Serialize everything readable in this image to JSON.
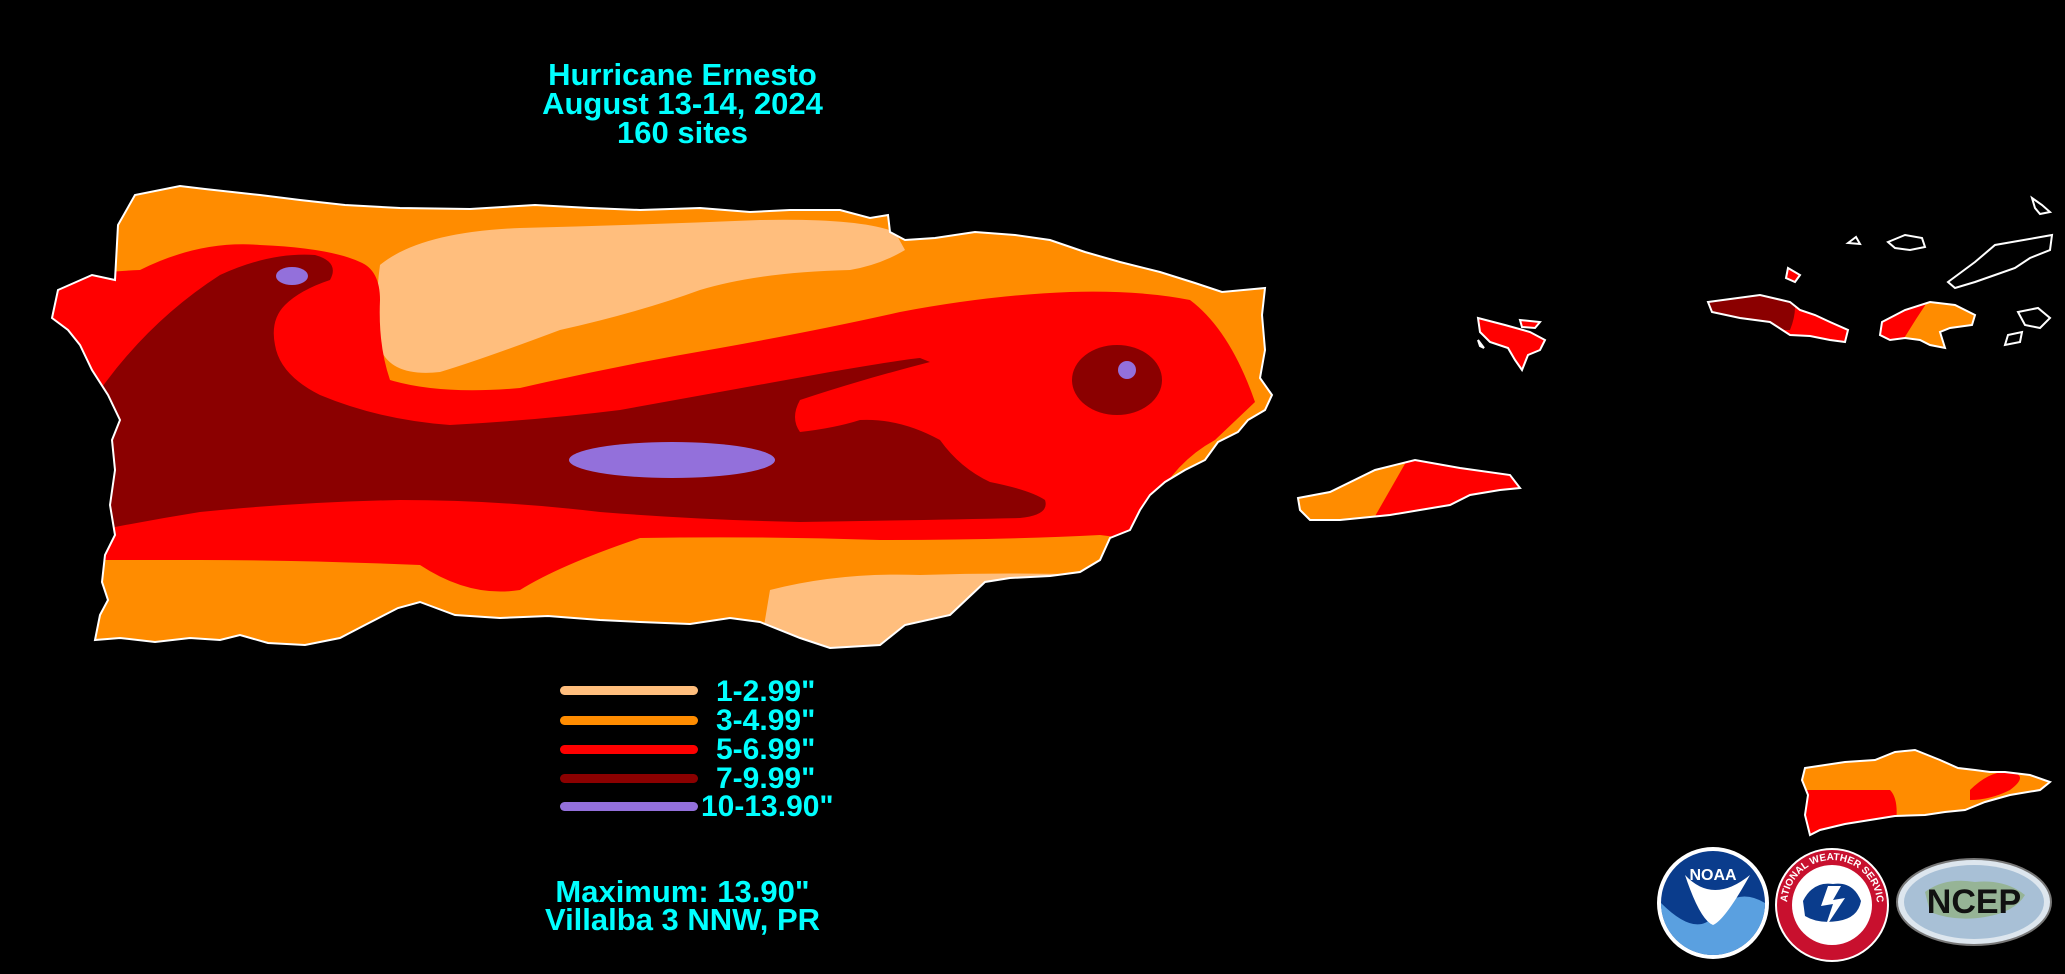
{
  "title": {
    "storm": "Hurricane Ernesto",
    "dates": "August 13-14, 2024",
    "sites": "160 sites"
  },
  "legend": [
    {
      "label": "1-2.99\"",
      "color": "#FFBE7D"
    },
    {
      "label": "3-4.99\"",
      "color": "#FF8C00"
    },
    {
      "label": "5-6.99\"",
      "color": "#FF0000"
    },
    {
      "label": "7-9.99\"",
      "color": "#8B0000"
    },
    {
      "label": "10-13.90\"",
      "color": "#9370DB"
    }
  ],
  "maximum": {
    "value": "Maximum: 13.90\"",
    "location": "Villalba 3 NNW, PR"
  },
  "logos": {
    "noaa": "NOAA",
    "nws": "NATIONAL WEATHER SERVICE",
    "ncep": "NCEP"
  },
  "colors": {
    "background": "#000000",
    "text": "#00FFFF",
    "coast": "#FFFFFF"
  }
}
